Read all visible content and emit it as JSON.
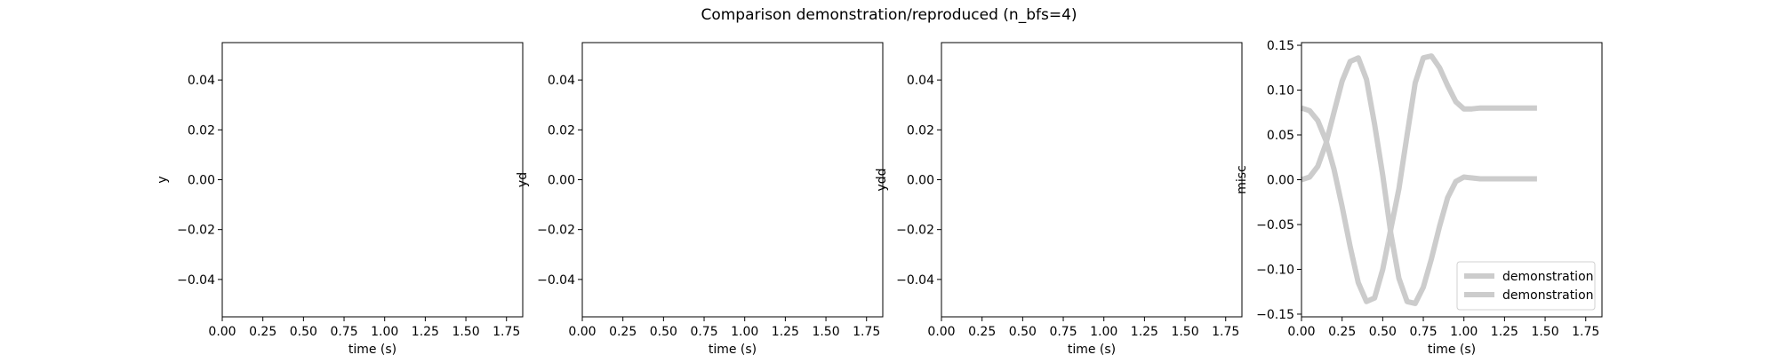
{
  "figure": {
    "suptitle": "Comparison demonstration/reproduced  (n_bfs=4)"
  },
  "chart_data": [
    {
      "type": "line",
      "xlabel": "time (s)",
      "ylabel": "y",
      "xlim": [
        0,
        1.85
      ],
      "ylim": [
        -0.055,
        0.055
      ],
      "xticks": [
        "0.00",
        "0.25",
        "0.50",
        "0.75",
        "1.00",
        "1.25",
        "1.50",
        "1.75"
      ],
      "yticks": [
        "0.04",
        "0.02",
        "0.00",
        "−0.02",
        "−0.04"
      ],
      "series": []
    },
    {
      "type": "line",
      "xlabel": "time (s)",
      "ylabel": "yd",
      "xlim": [
        0,
        1.85
      ],
      "ylim": [
        -0.055,
        0.055
      ],
      "xticks": [
        "0.00",
        "0.25",
        "0.50",
        "0.75",
        "1.00",
        "1.25",
        "1.50",
        "1.75"
      ],
      "yticks": [
        "0.04",
        "0.02",
        "0.00",
        "−0.02",
        "−0.04"
      ],
      "series": []
    },
    {
      "type": "line",
      "xlabel": "time (s)",
      "ylabel": "ydd",
      "xlim": [
        0,
        1.85
      ],
      "ylim": [
        -0.055,
        0.055
      ],
      "xticks": [
        "0.00",
        "0.25",
        "0.50",
        "0.75",
        "1.00",
        "1.25",
        "1.50",
        "1.75"
      ],
      "yticks": [
        "0.04",
        "0.02",
        "0.00",
        "−0.02",
        "−0.04"
      ],
      "series": []
    },
    {
      "type": "line",
      "xlabel": "time (s)",
      "ylabel": "misc",
      "xlim": [
        0,
        1.85
      ],
      "ylim": [
        -0.153,
        0.153
      ],
      "xticks": [
        "0.00",
        "0.25",
        "0.50",
        "0.75",
        "1.00",
        "1.25",
        "1.50",
        "1.75"
      ],
      "yticks": [
        "0.15",
        "0.10",
        "0.05",
        "0.00",
        "−0.05",
        "−0.10",
        "−0.15"
      ],
      "legend": "lower-right",
      "series": [
        {
          "name": "demonstration",
          "color": "#cccccc",
          "x": [
            0.0,
            0.05,
            0.1,
            0.15,
            0.2,
            0.25,
            0.3,
            0.35,
            0.4,
            0.45,
            0.5,
            0.55,
            0.6,
            0.65,
            0.7,
            0.75,
            0.8,
            0.85,
            0.9,
            0.95,
            1.0,
            1.05,
            1.1,
            1.2,
            1.3,
            1.45
          ],
          "y": [
            0.08,
            0.077,
            0.066,
            0.044,
            0.012,
            -0.03,
            -0.075,
            -0.115,
            -0.136,
            -0.132,
            -0.1,
            -0.055,
            -0.01,
            0.05,
            0.108,
            0.136,
            0.138,
            0.125,
            0.105,
            0.087,
            0.079,
            0.079,
            0.08,
            0.08,
            0.08,
            0.08
          ]
        },
        {
          "name": "demonstration",
          "color": "#cccccc",
          "x": [
            0.0,
            0.05,
            0.1,
            0.15,
            0.2,
            0.25,
            0.3,
            0.35,
            0.4,
            0.45,
            0.5,
            0.55,
            0.6,
            0.65,
            0.7,
            0.75,
            0.8,
            0.85,
            0.9,
            0.95,
            1.0,
            1.05,
            1.1,
            1.2,
            1.3,
            1.45
          ],
          "y": [
            0.0,
            0.003,
            0.015,
            0.04,
            0.075,
            0.11,
            0.132,
            0.136,
            0.112,
            0.062,
            0.005,
            -0.06,
            -0.11,
            -0.136,
            -0.138,
            -0.12,
            -0.088,
            -0.052,
            -0.02,
            -0.002,
            0.003,
            0.002,
            0.001,
            0.001,
            0.001,
            0.001
          ]
        }
      ]
    }
  ]
}
